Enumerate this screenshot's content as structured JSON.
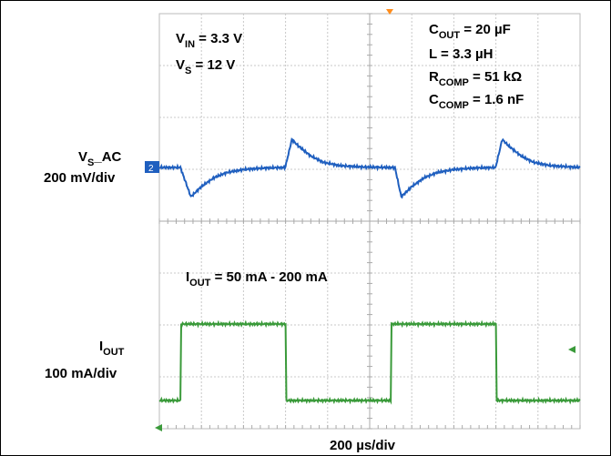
{
  "chart_data": {
    "type": "line",
    "channels": [
      {
        "label_main": "V",
        "label_sub": "S",
        "label_tail": "_AC",
        "scale": "200 mV/div",
        "marker": "2",
        "color": "#1f5fbf",
        "trace": [
          [
            0.0,
            0.0
          ],
          [
            0.5,
            0.0
          ],
          [
            0.75,
            -1.15
          ],
          [
            1.0,
            -0.75
          ],
          [
            1.3,
            -0.4
          ],
          [
            1.6,
            -0.2
          ],
          [
            2.0,
            -0.08
          ],
          [
            2.5,
            -0.02
          ],
          [
            2.98,
            0.0
          ],
          [
            3.0,
            0.05
          ],
          [
            3.15,
            1.1
          ],
          [
            3.3,
            0.85
          ],
          [
            3.6,
            0.45
          ],
          [
            3.9,
            0.2
          ],
          [
            4.3,
            0.07
          ],
          [
            4.8,
            0.02
          ],
          [
            5.4,
            0.0
          ],
          [
            5.6,
            0.0
          ],
          [
            5.75,
            -1.15
          ],
          [
            6.0,
            -0.75
          ],
          [
            6.3,
            -0.4
          ],
          [
            6.6,
            -0.2
          ],
          [
            7.0,
            -0.08
          ],
          [
            7.5,
            -0.02
          ],
          [
            7.98,
            0.0
          ],
          [
            8.0,
            0.05
          ],
          [
            8.15,
            1.1
          ],
          [
            8.3,
            0.85
          ],
          [
            8.6,
            0.45
          ],
          [
            8.9,
            0.2
          ],
          [
            9.3,
            0.07
          ],
          [
            10.0,
            0.0
          ]
        ]
      },
      {
        "label_main": "I",
        "label_sub": "OUT",
        "label_tail": "",
        "scale": "100 mA/div",
        "marker": "",
        "color": "#3a9a3a",
        "trace": [
          [
            0.0,
            50
          ],
          [
            0.5,
            50
          ],
          [
            0.52,
            200
          ],
          [
            3.0,
            200
          ],
          [
            3.02,
            50
          ],
          [
            5.5,
            50
          ],
          [
            5.52,
            200
          ],
          [
            8.0,
            200
          ],
          [
            8.02,
            50
          ],
          [
            10.0,
            50
          ]
        ]
      }
    ],
    "time_scale": "200 µs/div",
    "grid": true,
    "divisions": {
      "x": 10,
      "y": 8
    },
    "annotations": {
      "vin": {
        "main": "V",
        "sub": "IN",
        "tail": " = 3.3 V"
      },
      "vs": {
        "main": "V",
        "sub": "S",
        "tail": " = 12 V"
      },
      "cout": {
        "main": "C",
        "sub": "OUT",
        "tail": " = 20 µF"
      },
      "l": {
        "main": "L = 3.3 µH"
      },
      "rcomp": {
        "main": "R",
        "sub": "COMP",
        "tail": " = 51 kΩ"
      },
      "ccomp": {
        "main": "C",
        "sub": "COMP",
        "tail": " = 1.6 nF"
      },
      "iout_range": {
        "main": "I",
        "sub": "OUT",
        "tail": "  = 50 mA - 200 mA"
      }
    }
  }
}
